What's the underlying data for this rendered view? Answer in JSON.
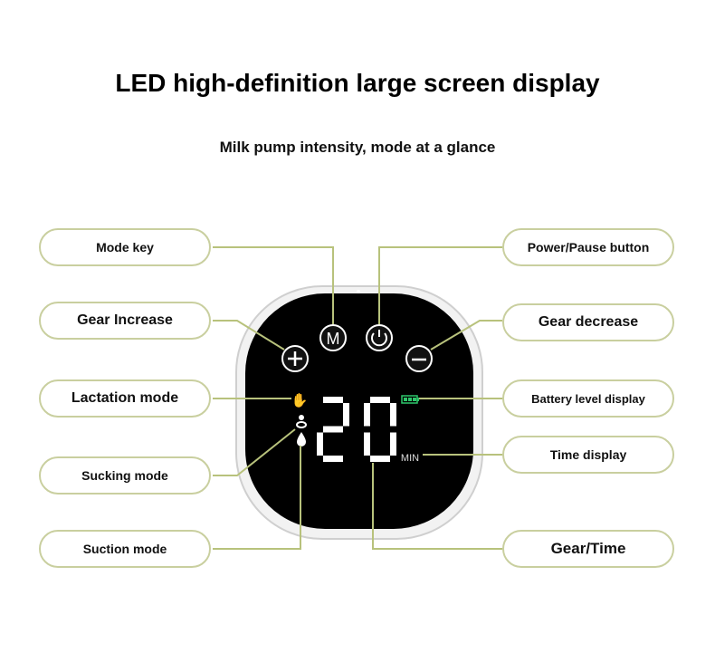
{
  "title": "LED high-definition large screen display",
  "subtitle": "Milk pump intensity, mode at a glance",
  "labels_left": [
    "Mode key",
    "Gear Increase",
    "Lactation mode",
    "Sucking mode",
    "Suction mode"
  ],
  "labels_right": [
    "Power/Pause button",
    "Gear decrease",
    "Battery level display",
    "Time display",
    "Gear/Time"
  ],
  "display": {
    "digits": "20",
    "unit": "MIN",
    "buttons": {
      "mode": "M"
    },
    "icons": [
      "plus-icon",
      "mode-icon",
      "power-icon",
      "minus-icon",
      "hand-icon",
      "pacifier-icon",
      "drop-icon",
      "battery-icon"
    ],
    "battery_level": 3
  },
  "colors": {
    "line": "#b8c27c",
    "pill_border": "#c9cf9f",
    "battery": "#2ec66b",
    "screen": "#000000"
  }
}
